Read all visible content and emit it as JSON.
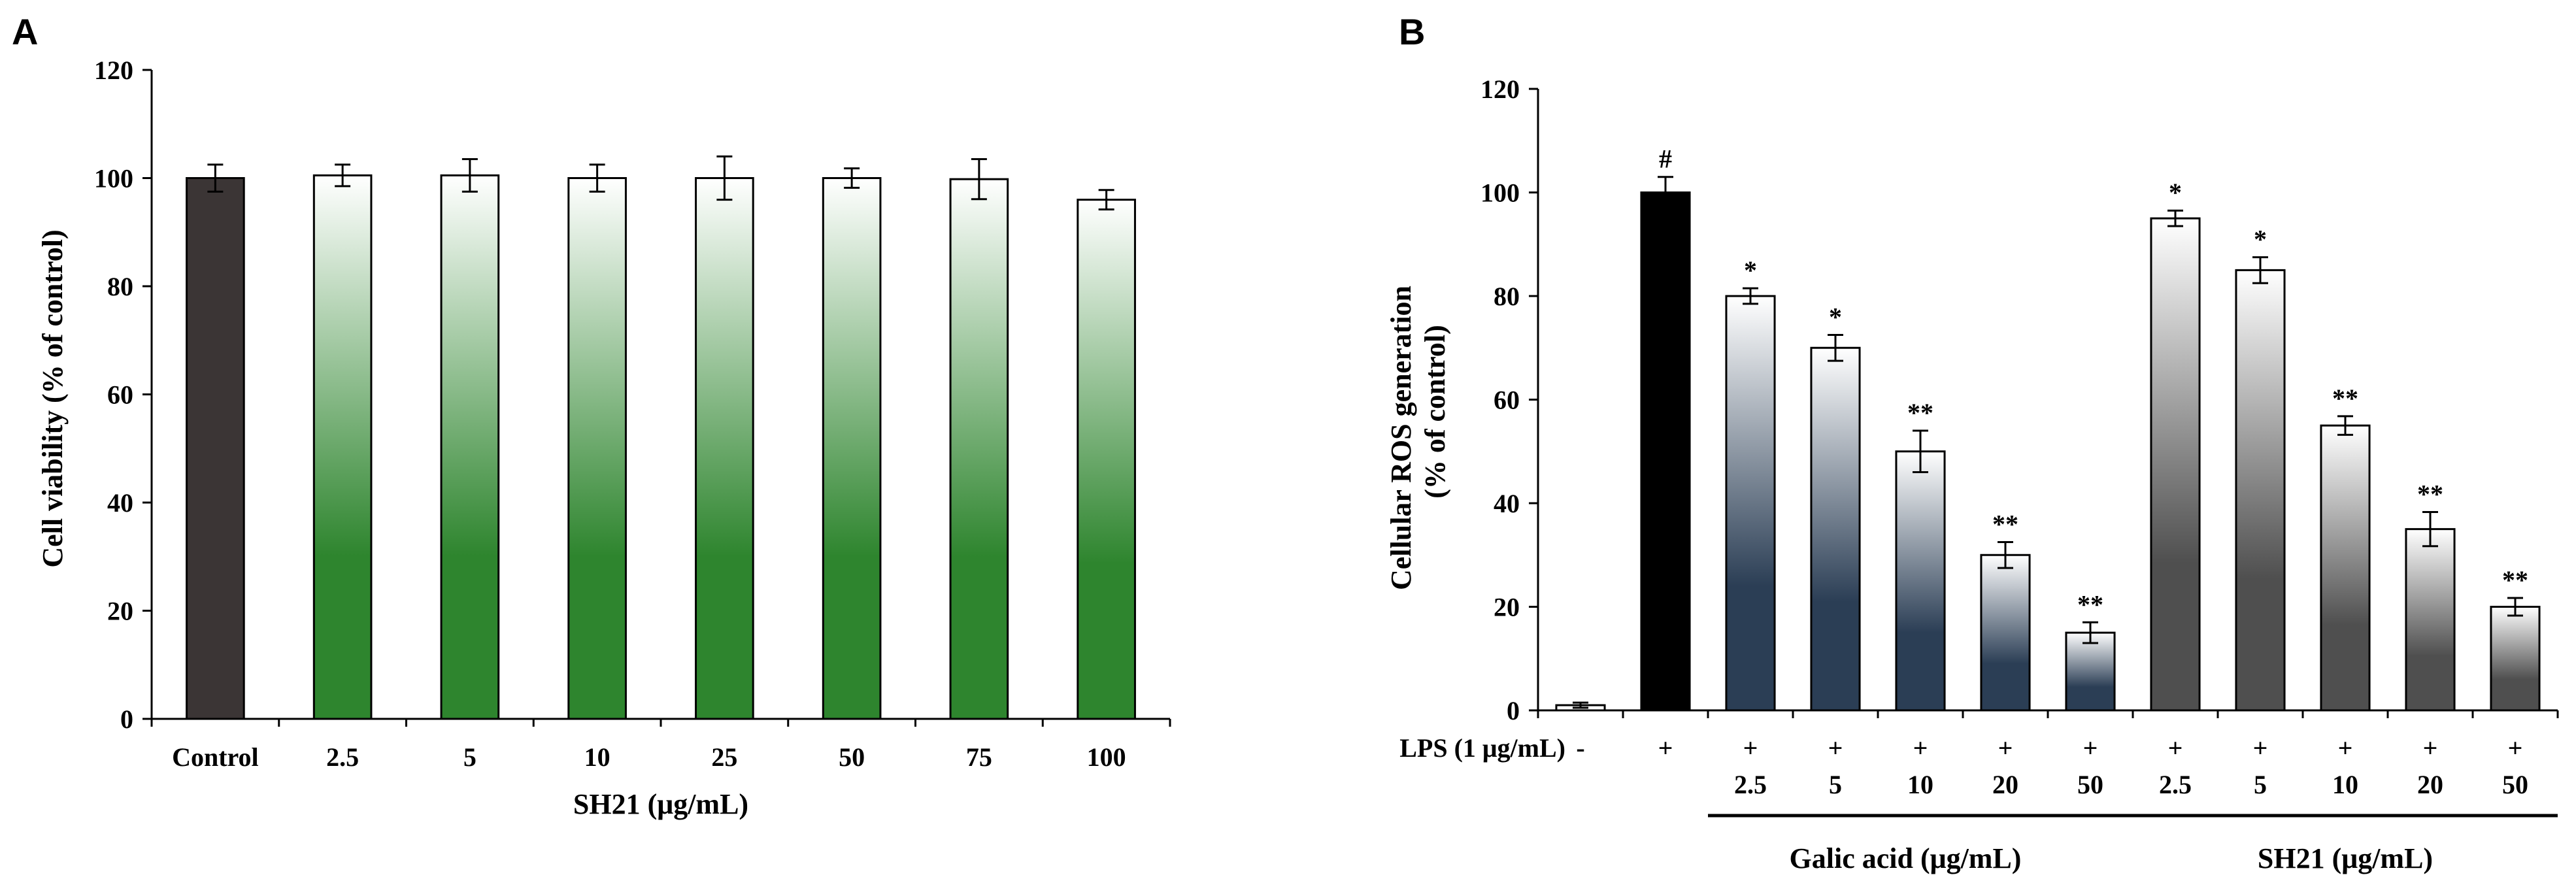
{
  "chart_data": [
    {
      "panel": "A",
      "type": "bar",
      "ylabel": "Cell viability (% of control)",
      "xlabel": "SH21 (μg/mL)",
      "ylim": [
        0,
        120
      ],
      "yticks": [
        "0",
        "20",
        "40",
        "60",
        "80",
        "100",
        "120"
      ],
      "categories": [
        "Control",
        "2.5",
        "5",
        "10",
        "25",
        "50",
        "75",
        "100"
      ],
      "values": [
        100,
        100.5,
        100.5,
        100,
        100,
        100,
        99.8,
        96
      ],
      "errors": [
        2.5,
        2,
        3,
        2.5,
        4,
        1.8,
        3.7,
        1.8
      ],
      "colors": {
        "control": "#3b3535",
        "sample": "#2e852e"
      }
    },
    {
      "panel": "B",
      "type": "bar",
      "ylabel_lines": [
        "Cellular ROS generation",
        "(% of control)"
      ],
      "ylim": [
        0,
        120
      ],
      "yticks": [
        "0",
        "20",
        "40",
        "60",
        "80",
        "100",
        "120"
      ],
      "lps_label": "LPS (1 μg/mL)",
      "lps_marks": [
        "-",
        "+",
        "+",
        "+",
        "+",
        "+",
        "+",
        "+",
        "+",
        "+",
        "+",
        "+"
      ],
      "dose_labels": [
        "",
        "",
        "2.5",
        "5",
        "10",
        "20",
        "50",
        "2.5",
        "5",
        "10",
        "20",
        "50"
      ],
      "values": [
        1,
        100,
        80,
        70,
        50,
        30,
        15,
        95,
        85,
        55,
        35,
        20
      ],
      "errors": [
        0.5,
        3,
        1.5,
        2.5,
        4,
        2.5,
        2,
        1.5,
        2.5,
        1.8,
        3.3,
        1.7
      ],
      "significance": [
        "",
        "#",
        "*",
        "*",
        "**",
        "**",
        "**",
        "*",
        "*",
        "**",
        "**",
        "**"
      ],
      "groups": [
        {
          "label": "Galic acid (μg/mL)",
          "start": 2,
          "end": 6
        },
        {
          "label": "SH21 (μg/mL)",
          "start": 7,
          "end": 11
        }
      ],
      "colors": {
        "lps": "#000000",
        "galic_acid": "#2b3e55",
        "sh21": "#525252"
      }
    }
  ]
}
